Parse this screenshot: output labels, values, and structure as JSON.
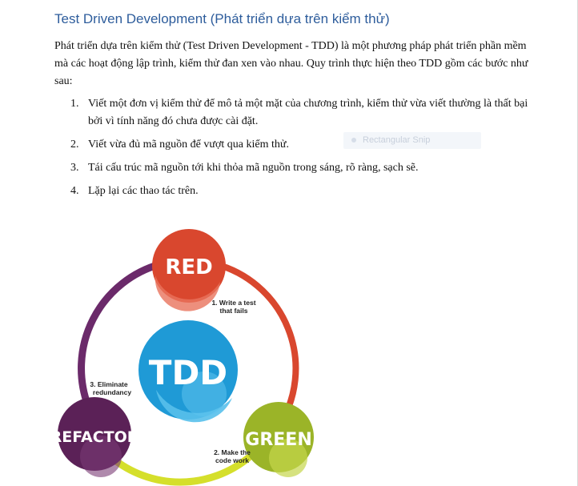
{
  "document": {
    "title": "Test Driven Development (Phát triển dựa trên kiểm thử)",
    "intro": "Phát triển dựa trên kiểm thử (Test Driven Development - TDD) là một phương pháp phát triển phần mềm mà các hoạt động lập trình, kiểm thử đan xen vào nhau. Quy trình thực hiện theo TDD gồm các bước như sau:",
    "steps": [
      {
        "num": "1.",
        "text": "Viết một đơn vị kiểm thử để mô tả một mặt của chương trình, kiểm thử vừa viết thường là thất bại bởi vì tính năng đó chưa được cài đặt."
      },
      {
        "num": "2.",
        "text": "Viết vừa đủ mã nguồn để vượt qua kiểm thử."
      },
      {
        "num": "3.",
        "text": "Tái cấu trúc mã nguồn tới khi thỏa mã nguồn trong sáng, rõ ràng, sạch sẽ."
      },
      {
        "num": "4.",
        "text": "Lặp lại các thao tác trên."
      }
    ],
    "snip_overlay": "Rectangular Snip"
  },
  "diagram": {
    "center": "TDD",
    "red": "RED",
    "green": "GREEN",
    "refactor": "REFACTOR",
    "step1_line1": "1. Write a test",
    "step1_line2": "that fails",
    "step2_line1": "2. Make the",
    "step2_line2": "code work",
    "step3_line1": "3. Eliminate",
    "step3_line2": "redundancy",
    "colors": {
      "red": "#d9472e",
      "green": "#9bb428",
      "refactor": "#5b2157",
      "tdd": "#1f9ad6",
      "arc_red": "#d9472e",
      "arc_green": "#d5df2b",
      "arc_purple": "#6b2a6a"
    }
  }
}
